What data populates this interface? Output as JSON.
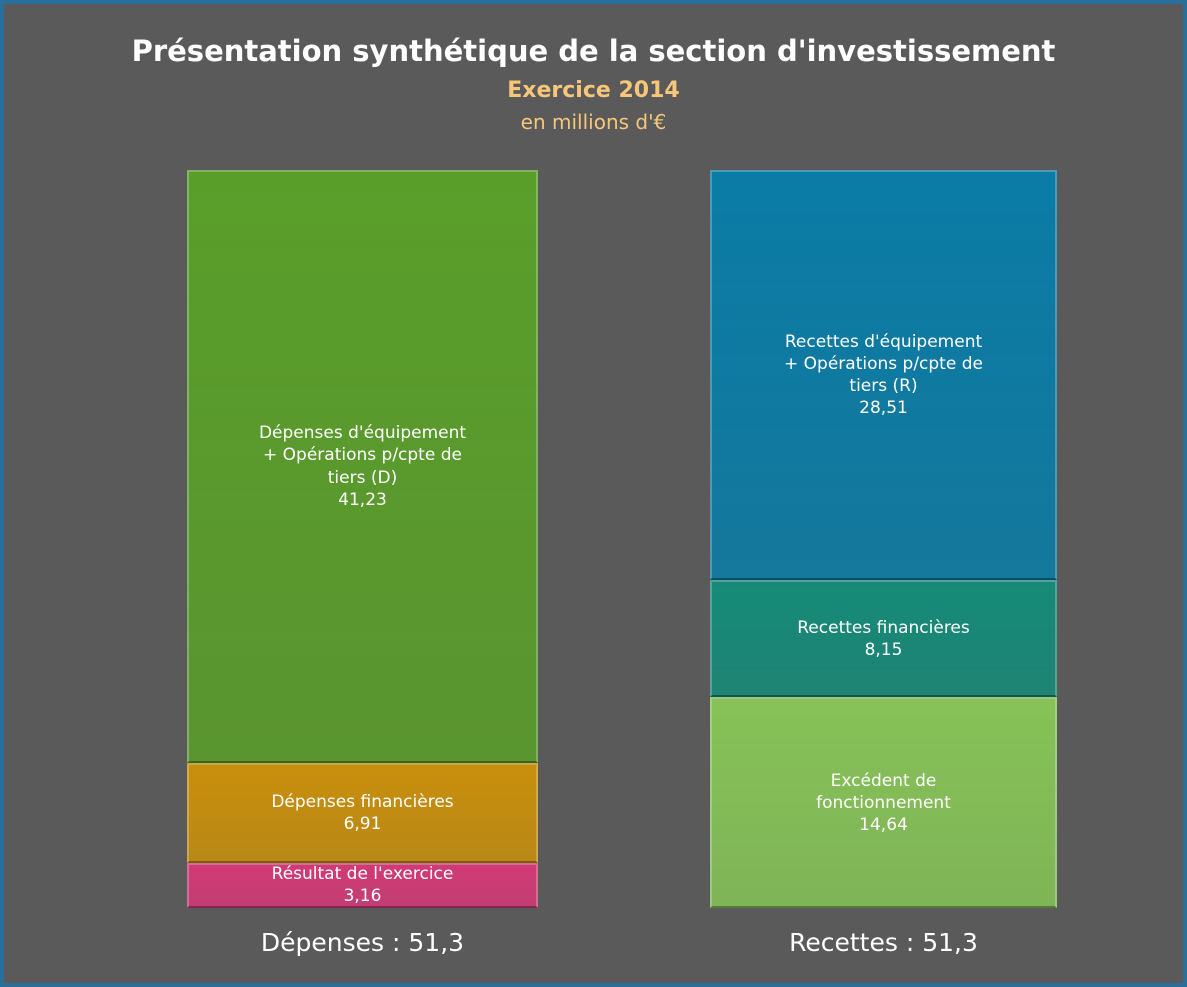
{
  "chart_data": {
    "type": "stacked_bar",
    "title": "Présentation synthétique de la section d'investissement",
    "subtitle": "Exercice 2014",
    "unit": "en millions d'€",
    "categories": [
      "Dépenses : 51,3",
      "Recettes : 51,3"
    ],
    "stacks": [
      {
        "segments": [
          {
            "name": "Résultat de l'exercice",
            "color": "#d13a76",
            "value": 3.16,
            "value_label": "3,16"
          },
          {
            "name": "Dépenses financières",
            "color": "#c88f0c",
            "value": 6.91,
            "value_label": "6,91"
          },
          {
            "name": "Dépenses d'équipement + Opérations p/cpte de tiers (D)",
            "color": "#5a9e2a",
            "value": 41.23,
            "value_label": "41,23"
          }
        ]
      },
      {
        "segments": [
          {
            "name": "Excédent de fonctionnement",
            "color": "#86c257",
            "value": 14.64,
            "value_label": "14,64"
          },
          {
            "name": "Recettes financières",
            "color": "#168a78",
            "value": 8.15,
            "value_label": "8,15"
          },
          {
            "name": "Recettes d'équipement + Opérations p/cpte de tiers (R)",
            "color": "#0a7ca6",
            "value": 28.51,
            "value_label": "28,51"
          }
        ]
      }
    ]
  }
}
